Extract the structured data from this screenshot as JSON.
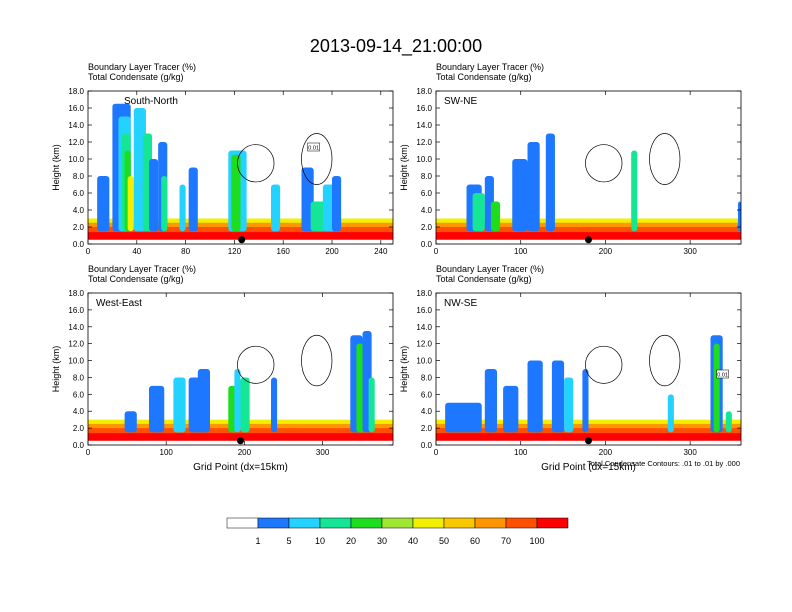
{
  "figure": {
    "title": "2013-09-14_21:00:00",
    "contour_note": "Total Condensate Contours: .01 to .01 by .000"
  },
  "colorbar": {
    "labels": [
      "1",
      "5",
      "10",
      "20",
      "30",
      "40",
      "50",
      "60",
      "70",
      "100"
    ],
    "colors": [
      "#ffffff",
      "#1e78ff",
      "#23d2ff",
      "#14e696",
      "#1edc1e",
      "#a0e632",
      "#f0f000",
      "#fac800",
      "#ff9600",
      "#ff5000",
      "#ff0000"
    ]
  },
  "chart_data": [
    {
      "type": "heatmap",
      "panel_label": "South-North",
      "header_line1": "Boundary Layer Tracer    (%)",
      "header_line2": "Total Condensate    (g/kg)",
      "ylabel": "Height (km)",
      "xlabel": "",
      "x_ticks": [
        "0",
        "40",
        "80",
        "120",
        "160",
        "200",
        "240"
      ],
      "y_ticks": [
        "0.0",
        "2.0",
        "4.0",
        "6.0",
        "8.0",
        "10.0",
        "12.0",
        "14.0",
        "16.0",
        "18.0"
      ],
      "xlim": [
        0,
        250
      ],
      "ylim": [
        0,
        18
      ],
      "marker_x": 126,
      "contour_label": "0.01"
    },
    {
      "type": "heatmap",
      "panel_label": "SW-NE",
      "header_line1": "Boundary Layer Tracer    (%)",
      "header_line2": "Total Condensate    (g/kg)",
      "ylabel": "Height (km)",
      "xlabel": "",
      "x_ticks": [
        "0",
        "100",
        "200",
        "300"
      ],
      "y_ticks": [
        "0.0",
        "2.0",
        "4.0",
        "6.0",
        "8.0",
        "10.0",
        "12.0",
        "14.0",
        "16.0",
        "18.0"
      ],
      "xlim": [
        0,
        360
      ],
      "ylim": [
        0,
        18
      ],
      "marker_x": 180,
      "contour_label": ""
    },
    {
      "type": "heatmap",
      "panel_label": "West-East",
      "header_line1": "Boundary Layer Tracer    (%)",
      "header_line2": "Total Condensate    (g/kg)",
      "ylabel": "Height (km)",
      "xlabel": "Grid Point (dx=15km)",
      "x_ticks": [
        "0",
        "100",
        "200",
        "300"
      ],
      "y_ticks": [
        "0.0",
        "2.0",
        "4.0",
        "6.0",
        "8.0",
        "10.0",
        "12.0",
        "14.0",
        "16.0",
        "18.0"
      ],
      "xlim": [
        0,
        390
      ],
      "ylim": [
        0,
        18
      ],
      "marker_x": 195,
      "contour_label": ""
    },
    {
      "type": "heatmap",
      "panel_label": "NW-SE",
      "header_line1": "Boundary Layer Tracer    (%)",
      "header_line2": "Total Condensate    (g/kg)",
      "ylabel": "Height (km)",
      "xlabel": "Grid Point (dx=15km)",
      "x_ticks": [
        "0",
        "100",
        "200",
        "300"
      ],
      "y_ticks": [
        "0.0",
        "2.0",
        "4.0",
        "6.0",
        "8.0",
        "10.0",
        "12.0",
        "14.0",
        "16.0",
        "18.0"
      ],
      "xlim": [
        0,
        360
      ],
      "ylim": [
        0,
        18
      ],
      "marker_x": 180,
      "contour_label": "0.01"
    }
  ]
}
